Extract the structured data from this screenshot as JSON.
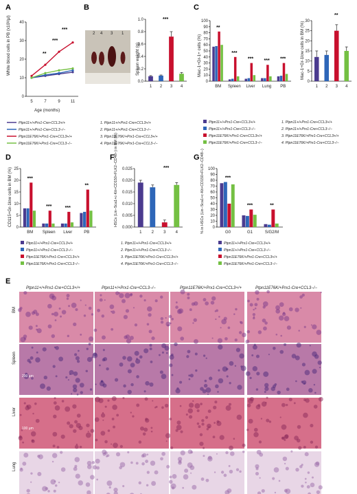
{
  "colors": {
    "wt": "#4b3b8f",
    "ccl3ko": "#2e66b8",
    "e76k": "#c8102e",
    "e76kko": "#74c043"
  },
  "panels": {
    "A": {
      "letter": "A",
      "ylabel": "White blood cells in PB (x10³/µl)",
      "xlabel": "Age (months)",
      "sig": [
        "**",
        "***",
        "***"
      ],
      "legend": [
        "Ptpn11+/+Prx1-Cre+CCL3+/+",
        "Ptpn11+/+Prx1-Cre+CCL3−/−",
        "Ptpn11E76K/+Prx1-Cre+CCL3+/+",
        "Ptpn11E76K/+Prx1-Cre+CCL3−/−"
      ]
    },
    "B": {
      "letter": "B",
      "ylabel": "Spleen weight (g)",
      "photo_labels": [
        "2",
        "4",
        "3",
        "1"
      ],
      "sig": [
        "***"
      ],
      "legend": [
        "1. Ptpn11+/+Prx1-Cre+CCL3+/+",
        "2. Ptpn11+/+Prx1-Cre+CCL3−/−",
        "3. Ptpn11E76K/+Prx1-Cre+CCL3+/+",
        "4. Ptpn11E76K/+Prx1-Cre+CCL3−/−"
      ]
    },
    "C": {
      "letter": "C",
      "ylabel_left": "Mac-1+Gr-1+ cells (%)",
      "ylabel_right": "Mac-1+Gr-1low cells in BM (%)",
      "sig_left": [
        "**",
        "***",
        "***",
        "***",
        "***"
      ],
      "sig_right": [
        "**"
      ]
    },
    "D": {
      "letter": "D",
      "ylabel": "CD115+Gr-1low cells in BM (%)",
      "sig": [
        "***",
        "***",
        "***",
        "**"
      ]
    },
    "F": {
      "letter": "F",
      "ylabel": "HSCs (Lin−Sca1+c-Kit+CD150+FLK2−CD48−) in BM (%)",
      "sig": [
        "***"
      ]
    },
    "G": {
      "letter": "G",
      "ylabel": "% in HSCs (Lin−Sca1+c-Kit+CD150+FLK2−CD48−)",
      "sig": [
        "***",
        "***",
        "**"
      ]
    },
    "E": {
      "letter": "E",
      "columns": [
        "Ptpn11+/+Prx1-Cre+CCL3+/+",
        "Ptpn11+/+Prx1-Cre+CCL3−/−",
        "Ptpn11E76K/+Prx1-Cre+CCL3+/+",
        "Ptpn11E76K/+Prx1-Cre+CCL3−/−"
      ],
      "rows": [
        "BM",
        "Spleen",
        "Liver",
        "Lung"
      ],
      "scale_bars": [
        "",
        "200 µm",
        "100 µm",
        ""
      ]
    }
  },
  "chart_data": [
    {
      "panel": "A",
      "type": "line",
      "x": [
        5,
        7,
        9,
        11
      ],
      "xlabel": "Age (months)",
      "ylabel": "White blood cells in PB (x10³/µl)",
      "ylim": [
        0,
        40
      ],
      "yticks": [
        0,
        10,
        20,
        30,
        40
      ],
      "series": [
        {
          "name": "Ptpn11+/+Prx1-Cre+CCL3+/+",
          "values": [
            10,
            11,
            12,
            13
          ],
          "color": "#4b3b8f"
        },
        {
          "name": "Ptpn11+/+Prx1-Cre+CCL3−/−",
          "values": [
            10,
            11.5,
            12.5,
            14
          ],
          "color": "#2e66b8"
        },
        {
          "name": "Ptpn11E76K/+Prx1-Cre+CCL3+/+",
          "values": [
            11,
            17,
            24,
            29
          ],
          "color": "#c8102e"
        },
        {
          "name": "Ptpn11E76K/+Prx1-Cre+CCL3−/−",
          "values": [
            10,
            12.5,
            14,
            15
          ],
          "color": "#74c043"
        }
      ]
    },
    {
      "panel": "B",
      "type": "bar",
      "categories": [
        "1",
        "2",
        "3",
        "4"
      ],
      "values": [
        0.08,
        0.09,
        0.72,
        0.12
      ],
      "errors": [
        0.01,
        0.01,
        0.08,
        0.02
      ],
      "ylabel": "Spleen weight (g)",
      "ylim": [
        0,
        1.0
      ],
      "yticks": [
        0.0,
        0.2,
        0.4,
        0.6,
        0.8,
        1.0
      ]
    },
    {
      "panel": "C-left",
      "type": "bar",
      "categories": [
        "BM",
        "Spleen",
        "Liver",
        "Lung",
        "PB"
      ],
      "ylim": [
        0,
        100
      ],
      "yticks": [
        0,
        10,
        20,
        30,
        40,
        50,
        60,
        70,
        80,
        90,
        100
      ],
      "series": [
        {
          "name": "1",
          "values": [
            57,
            3,
            4,
            5,
            8
          ]
        },
        {
          "name": "2",
          "values": [
            58,
            4,
            5,
            5,
            9
          ]
        },
        {
          "name": "3",
          "values": [
            82,
            40,
            30,
            27,
            30
          ]
        },
        {
          "name": "4",
          "values": [
            60,
            8,
            10,
            8,
            12
          ]
        }
      ]
    },
    {
      "panel": "C-right",
      "type": "bar",
      "categories": [
        "1",
        "2",
        "3",
        "4"
      ],
      "values": [
        12,
        13,
        25,
        15
      ],
      "errors": [
        3,
        2,
        3,
        2
      ],
      "ylim": [
        0,
        30
      ],
      "yticks": [
        0,
        5,
        10,
        15,
        20,
        25,
        30
      ]
    },
    {
      "panel": "D",
      "type": "bar",
      "categories": [
        "BM",
        "Spleen",
        "Liver",
        "PB"
      ],
      "ylim": [
        0,
        25
      ],
      "yticks": [
        0,
        5,
        10,
        15,
        20,
        25
      ],
      "series": [
        {
          "name": "1",
          "values": [
            8,
            1.5,
            1.5,
            6
          ]
        },
        {
          "name": "2",
          "values": [
            8,
            1.5,
            1.5,
            6.5
          ]
        },
        {
          "name": "3",
          "values": [
            19,
            7,
            6.5,
            16
          ]
        },
        {
          "name": "4",
          "values": [
            7,
            1.5,
            2,
            7
          ]
        }
      ]
    },
    {
      "panel": "F",
      "type": "bar",
      "categories": [
        "1",
        "2",
        "3",
        "4"
      ],
      "values": [
        0.019,
        0.017,
        0.002,
        0.018
      ],
      "errors": [
        0.001,
        0.001,
        0.001,
        0.001
      ],
      "ylim": [
        0,
        0.025
      ],
      "yticks": [
        0.0,
        0.005,
        0.01,
        0.015,
        0.02,
        0.025
      ]
    },
    {
      "panel": "G",
      "type": "bar",
      "categories": [
        "G0",
        "G1",
        "S/G2/M"
      ],
      "ylim": [
        0,
        100
      ],
      "yticks": [
        0,
        10,
        20,
        30,
        40,
        50,
        60,
        70,
        80,
        90,
        100
      ],
      "series": [
        {
          "name": "1",
          "values": [
            75,
            20,
            5
          ]
        },
        {
          "name": "2",
          "values": [
            77,
            19,
            4
          ]
        },
        {
          "name": "3",
          "values": [
            40,
            30,
            30
          ]
        },
        {
          "name": "4",
          "values": [
            73,
            21,
            6
          ]
        }
      ]
    }
  ]
}
